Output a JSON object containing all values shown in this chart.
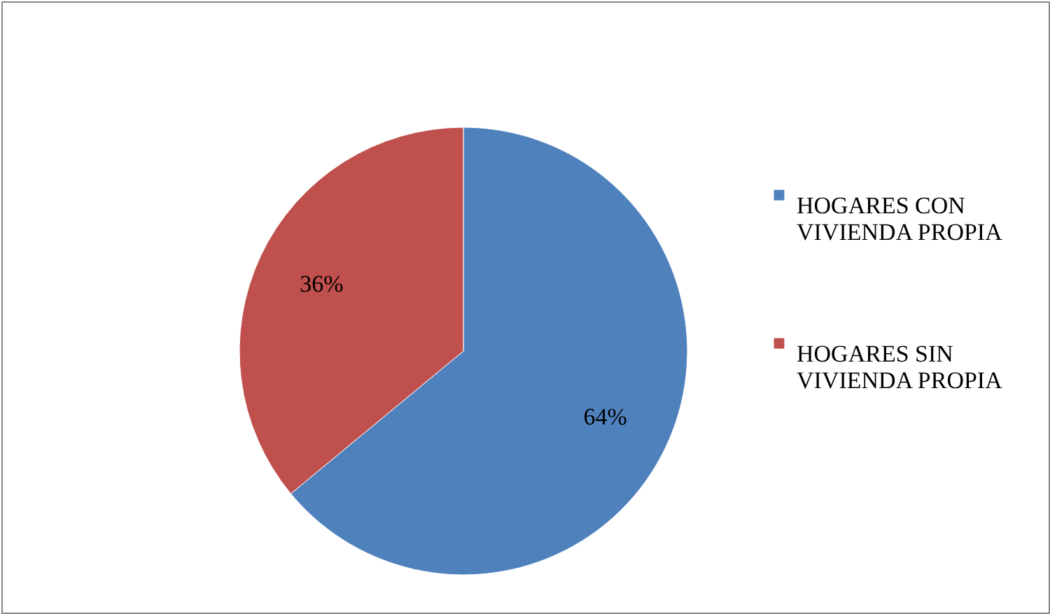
{
  "chart_data": {
    "type": "pie",
    "categories": [
      "HOGARES CON VIVIENDA PROPIA",
      "HOGARES SIN VIVIENDA PROPIA"
    ],
    "values": [
      64,
      36
    ],
    "colors": [
      "#4f81bd",
      "#c0504d"
    ],
    "value_labels": [
      "64%",
      "36%"
    ],
    "legend": "right"
  }
}
